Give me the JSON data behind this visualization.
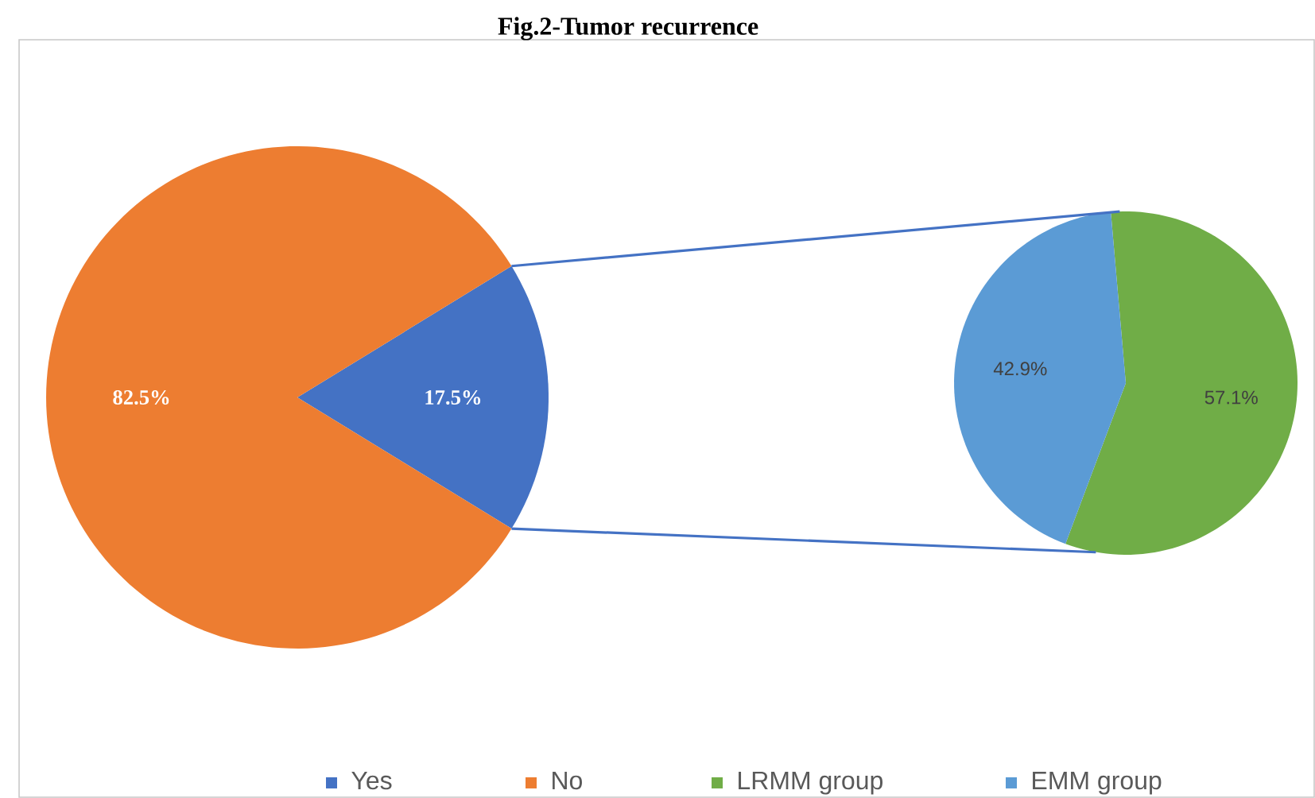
{
  "chart_data": [
    {
      "type": "pie",
      "title": "Fig.2-Tumor recurrence",
      "categories": [
        "Yes",
        "No"
      ],
      "values": [
        17.5,
        82.5
      ],
      "colors": [
        "#4472c4",
        "#ed7d31"
      ],
      "value_labels": [
        "17.5%",
        "82.5%"
      ],
      "legend": "bottom"
    },
    {
      "type": "pie",
      "categories": [
        "LRMM group",
        "EMM group"
      ],
      "values": [
        57.1,
        42.9
      ],
      "colors": [
        "#70ad47",
        "#5b9bd5"
      ],
      "value_labels": [
        "57.1%",
        "42.9%"
      ],
      "legend": "bottom"
    }
  ]
}
